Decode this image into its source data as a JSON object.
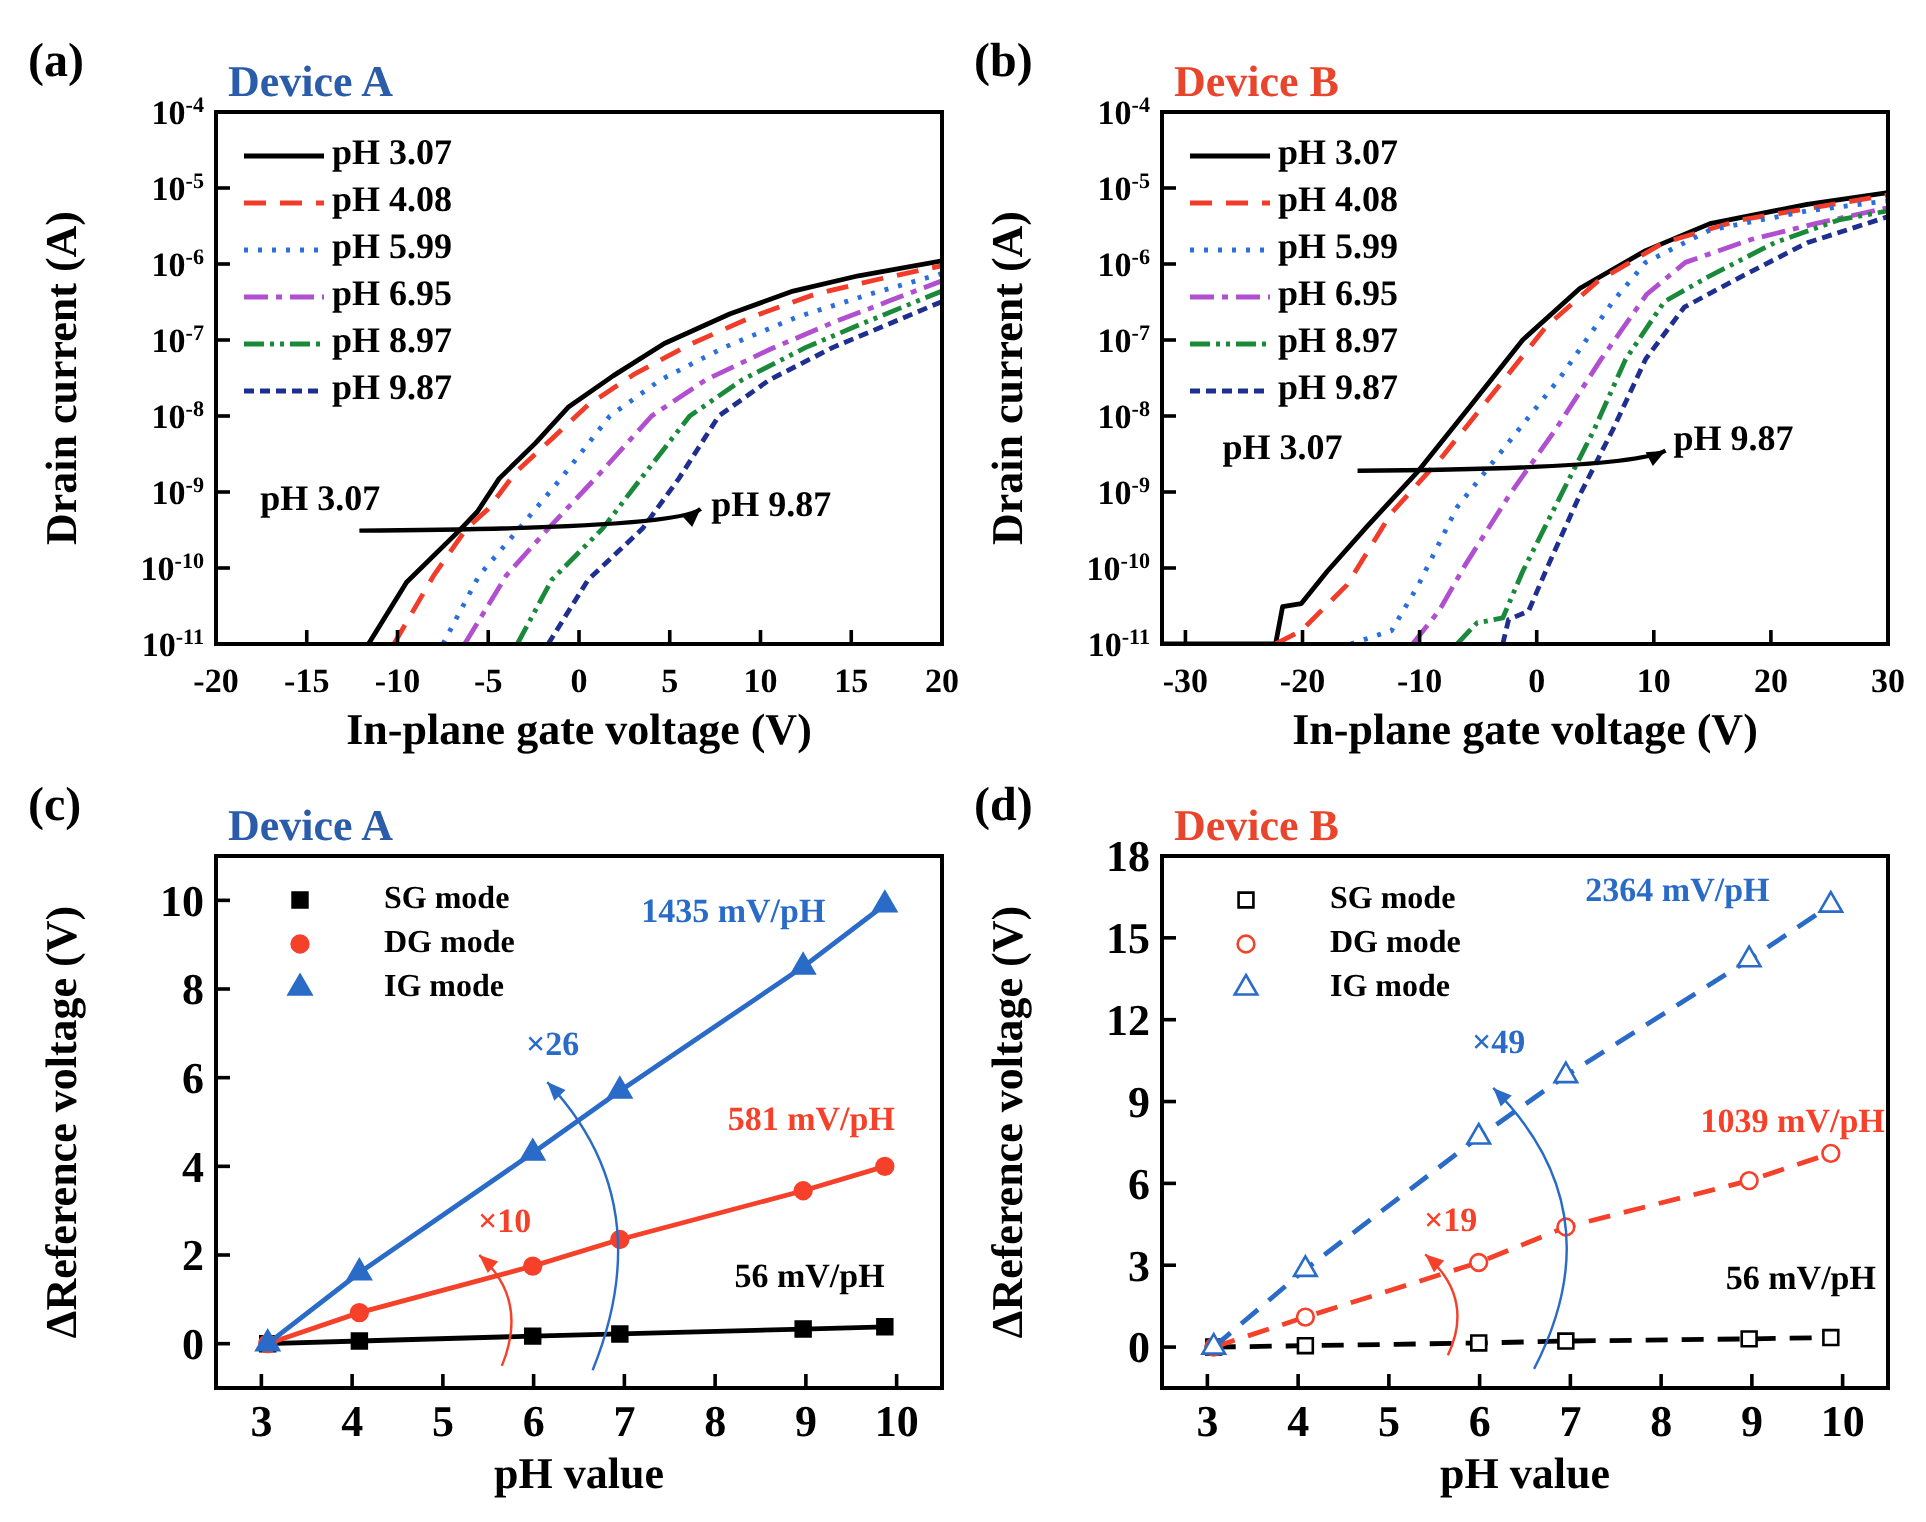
{
  "chart_data": [
    {
      "type": "line",
      "title": "Device A",
      "xlabel": "In-plane gate voltage (V)",
      "ylabel": "Drain current (A)",
      "log": "y",
      "xlim": [
        -20,
        20
      ],
      "xticks": [
        -20,
        -15,
        -10,
        -5,
        0,
        5,
        10,
        15,
        20
      ],
      "ylim": [
        1e-11,
        0.0001
      ],
      "yticks": [
        {
          "value": 1e-11,
          "label": "10$^{-11}$"
        },
        {
          "value": 1e-10,
          "label": "10$^{-10}$"
        },
        {
          "value": 1e-09,
          "label": "10$^{-9}$"
        },
        {
          "value": 1e-08,
          "label": "10$^{-8}$"
        },
        {
          "value": 1e-07,
          "label": "10$^{-7}$"
        },
        {
          "value": 1e-06,
          "label": "10$^{-6}$"
        },
        {
          "value": 1e-05,
          "label": "10$^{-5}$"
        },
        {
          "value": 0.0001,
          "label": "10$^{-4}$"
        }
      ],
      "legend": "top left",
      "marker": "none",
      "series": [
        {
          "name": "pH 3.07",
          "color": "#000000",
          "line_style": "solid",
          "x": [
            -11.6,
            -9.5,
            -6.6,
            -5.6,
            -4.4,
            -2.4,
            -0.6,
            1.9,
            4.7,
            8.3,
            11.8,
            15.4,
            20
          ],
          "values": [
            1e-11,
            6.5e-11,
            3.1e-10,
            5.5e-10,
            1.5e-09,
            4.4e-09,
            1.3e-08,
            3.4e-08,
            9e-08,
            2.2e-07,
            4.4e-07,
            7e-07,
            1.1e-06
          ]
        },
        {
          "name": "pH 4.08",
          "color": "#f03c28",
          "line_style": "dashed",
          "x": [
            -10.2,
            -8,
            -6.2,
            -5,
            -3.5,
            -1.5,
            0.5,
            3,
            6,
            9.5,
            13,
            16.5,
            20
          ],
          "values": [
            1e-11,
            8e-11,
            3.3e-10,
            6e-10,
            1.8e-09,
            5e-09,
            1.4e-08,
            3.5e-08,
            8.5e-08,
            2e-07,
            4e-07,
            6.3e-07,
            9.5e-07
          ]
        },
        {
          "name": "pH 5.99",
          "color": "#2a6fdb",
          "line_style": "dotted",
          "x": [
            -7.5,
            -5.5,
            -3.3,
            -1,
            1.7,
            4.5,
            8,
            12,
            16,
            20
          ],
          "values": [
            1e-11,
            8e-11,
            3.3e-10,
            1.5e-09,
            1e-08,
            3e-08,
            8e-08,
            2e-07,
            4e-07,
            7.5e-07
          ]
        },
        {
          "name": "pH 6.95",
          "color": "#b04fd0",
          "line_style": "dashdot",
          "x": [
            -6.3,
            -4,
            -1.7,
            1,
            4,
            7,
            10.5,
            14,
            17,
            20
          ],
          "values": [
            1e-11,
            8e-11,
            3.3e-10,
            1.6e-09,
            1e-08,
            3e-08,
            7.5e-08,
            1.7e-07,
            3.2e-07,
            6e-07
          ]
        },
        {
          "name": "pH 8.97",
          "color": "#1a8a3a",
          "line_style": "dashdotdot",
          "x": [
            -3.4,
            -1.5,
            1.3,
            3.5,
            6.1,
            9,
            12.5,
            16,
            20
          ],
          "values": [
            1e-11,
            7e-11,
            3.3e-10,
            1.6e-09,
            1e-08,
            3e-08,
            8e-08,
            1.8e-07,
            4.4e-07
          ]
        },
        {
          "name": "pH 9.87",
          "color": "#1f2f8f",
          "line_style": "shortdash",
          "x": [
            -1.7,
            0.5,
            3.5,
            5.5,
            7.7,
            10.5,
            14,
            17,
            20
          ],
          "values": [
            1e-11,
            7e-11,
            3.3e-10,
            1.5e-09,
            1e-08,
            3e-08,
            8e-08,
            1.6e-07,
            3.2e-07
          ]
        }
      ],
      "annotations": [
        "(a)",
        "pH 3.07",
        "pH 9.87"
      ]
    },
    {
      "type": "line",
      "title": "Device B",
      "xlabel": "In-plane gate voltage (V)",
      "ylabel": "Drain current (A)",
      "log": "y",
      "xlim": [
        -32,
        30
      ],
      "xticks": [
        -30,
        -20,
        -10,
        0,
        10,
        20,
        30
      ],
      "ylim": [
        1e-11,
        0.0001
      ],
      "yticks": [
        {
          "value": 1e-11,
          "label": "10$^{-11}$"
        },
        {
          "value": 1e-10,
          "label": "10$^{-10}$"
        },
        {
          "value": 1e-09,
          "label": "10$^{-9}$"
        },
        {
          "value": 1e-08,
          "label": "10$^{-8}$"
        },
        {
          "value": 1e-07,
          "label": "10$^{-7}$"
        },
        {
          "value": 1e-06,
          "label": "10$^{-6}$"
        },
        {
          "value": 1e-05,
          "label": "10$^{-5}$"
        },
        {
          "value": 0.0001,
          "label": "10$^{-4}$"
        }
      ],
      "legend": "top left",
      "marker": "none",
      "series": [
        {
          "name": "pH 3.07",
          "color": "#000000",
          "line_style": "solid",
          "x": [
            -32,
            -25,
            -22.3,
            -21.7,
            -20.1,
            -17.9,
            -14.5,
            -10.1,
            -5.6,
            -1.2,
            3.7,
            9.3,
            14.8,
            23.1,
            30
          ],
          "values": [
            1e-11,
            1e-11,
            1e-11,
            3.1e-11,
            3.4e-11,
            9e-11,
            3.5e-10,
            1.9e-09,
            1.4e-08,
            1e-07,
            4.8e-07,
            1.5e-06,
            3.4e-06,
            6.1e-06,
            8.7e-06
          ]
        },
        {
          "name": "pH 4.08",
          "color": "#f03c28",
          "line_style": "dashed",
          "x": [
            -22.3,
            -20.1,
            -16.2,
            -12.4,
            -8,
            -3.6,
            0.8,
            5.2,
            10.8,
            17.4,
            30
          ],
          "values": [
            1e-11,
            1.5e-11,
            6e-11,
            5.3e-10,
            3e-09,
            2.1e-08,
            1.5e-07,
            5.9e-07,
            1.9e-06,
            3.8e-06,
            8.1e-06
          ]
        },
        {
          "name": "pH 5.99",
          "color": "#2a6fdb",
          "line_style": "dotted",
          "x": [
            -15.9,
            -12.4,
            -10.1,
            -6.8,
            -2.4,
            2,
            6.5,
            9.3,
            14.8,
            23.1,
            30
          ],
          "values": [
            1e-11,
            1.5e-11,
            6e-11,
            6.3e-10,
            4.5e-09,
            3.2e-08,
            3.2e-07,
            1.05e-06,
            2.8e-06,
            5e-06,
            6.8e-06
          ]
        },
        {
          "name": "pH 6.95",
          "color": "#b04fd0",
          "line_style": "dashdot",
          "x": [
            -10.6,
            -8.3,
            -6.1,
            -2.3,
            1.6,
            5.5,
            9.4,
            12.7,
            18.3,
            23.8,
            30
          ],
          "values": [
            1e-11,
            2.8e-11,
            1.1e-10,
            9.3e-10,
            6.6e-09,
            5.6e-08,
            4e-07,
            1.05e-06,
            2.1e-06,
            3.4e-06,
            5.5e-06
          ]
        },
        {
          "name": "pH 8.97",
          "color": "#1a8a3a",
          "line_style": "dashdotdot",
          "x": [
            -6.8,
            -5.1,
            -2.9,
            -1.2,
            2.1,
            4.9,
            7.6,
            10.9,
            14.8,
            20.3,
            25.8,
            30
          ],
          "values": [
            1e-11,
            1.9e-11,
            2.2e-11,
            9e-11,
            9.3e-10,
            6.6e-09,
            5.6e-08,
            3.2e-07,
            7e-07,
            1.9e-06,
            3.8e-06,
            5e-06
          ]
        },
        {
          "name": "pH 9.87",
          "color": "#1f2f8f",
          "line_style": "shortdash",
          "x": [
            -2.9,
            -2.4,
            -0.7,
            1,
            3.7,
            6.5,
            9.3,
            12.6,
            17.6,
            23.1,
            30
          ],
          "values": [
            1e-11,
            2.1e-11,
            2.7e-11,
            1.1e-10,
            9.3e-10,
            6.6e-09,
            5.6e-08,
            2.7e-07,
            7e-07,
            1.9e-06,
            4.2e-06
          ]
        }
      ],
      "annotations": [
        "(b)",
        "pH 3.07",
        "pH 9.87"
      ]
    },
    {
      "type": "line",
      "title": "Device A",
      "xlabel": "pH value",
      "ylabel": "ΔReference voltage (V)",
      "xlim": [
        2.5,
        10.5
      ],
      "xticks": [
        3,
        4,
        5,
        6,
        7,
        8,
        9,
        10
      ],
      "ylim": [
        -1,
        11
      ],
      "yticks": [
        0,
        2,
        4,
        6,
        8,
        10
      ],
      "legend": "top left",
      "line_style": "solid",
      "x": [
        3.07,
        4.08,
        5.99,
        6.95,
        8.97,
        9.87
      ],
      "series": [
        {
          "name": "SG mode",
          "color": "#000000",
          "marker": "square",
          "values": [
            0,
            0.06,
            0.17,
            0.22,
            0.33,
            0.38
          ]
        },
        {
          "name": "DG mode",
          "color": "#f5402a",
          "marker": "circle",
          "values": [
            0,
            0.7,
            1.75,
            2.35,
            3.45,
            4.0
          ]
        },
        {
          "name": "IG mode",
          "color": "#2a6bc8",
          "marker": "triangle",
          "values": [
            0,
            1.6,
            4.3,
            5.7,
            8.5,
            9.9
          ]
        }
      ],
      "annotations": [
        "(c)",
        "1435 mV/pH",
        "581 mV/pH",
        "56 mV/pH",
        "×26",
        "×10"
      ]
    },
    {
      "type": "line",
      "title": "Device B",
      "xlabel": "pH value",
      "ylabel": "ΔReference voltage (V)",
      "xlim": [
        2.5,
        10.5
      ],
      "xticks": [
        3,
        4,
        5,
        6,
        7,
        8,
        9,
        10
      ],
      "ylim": [
        -1.5,
        18
      ],
      "yticks": [
        0,
        3,
        6,
        9,
        12,
        15,
        18
      ],
      "legend": "top left",
      "line_style": "dashed",
      "x": [
        3.07,
        4.08,
        5.99,
        6.95,
        8.97,
        9.87
      ],
      "series": [
        {
          "name": "SG mode",
          "color": "#000000",
          "marker": "square",
          "values": [
            0,
            0.05,
            0.15,
            0.22,
            0.3,
            0.35
          ]
        },
        {
          "name": "DG mode",
          "color": "#f5402a",
          "marker": "circle",
          "values": [
            0,
            1.1,
            3.1,
            4.4,
            6.1,
            7.1
          ]
        },
        {
          "name": "IG mode",
          "color": "#2a6bc8",
          "marker": "triangle",
          "values": [
            0,
            2.85,
            7.7,
            9.95,
            14.2,
            16.2
          ]
        }
      ],
      "annotations": [
        "(d)",
        "2364 mV/pH",
        "1039 mV/pH",
        "56 mV/pH",
        "×49",
        "×19"
      ]
    }
  ]
}
